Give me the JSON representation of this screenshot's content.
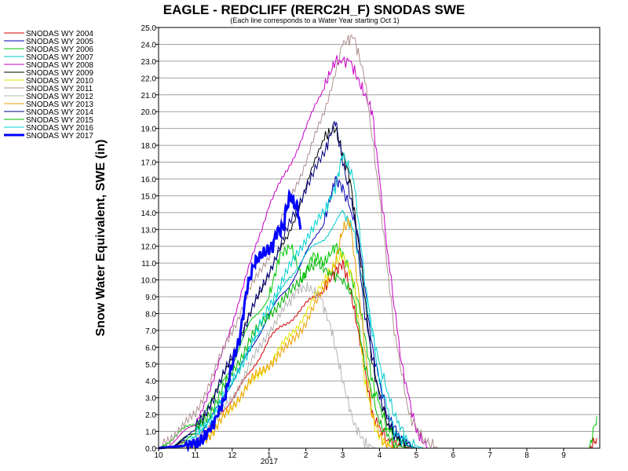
{
  "chart_data": {
    "type": "line",
    "title": "EAGLE - REDCLIFF (RERC2H_F) SNODAS SWE",
    "subtitle": "(Each line corresponds to a Water Year starting Oct 1)",
    "ylabel": "Snow Water Equivalent, SWE (in)",
    "xlabel": "",
    "ylim": [
      0,
      25
    ],
    "xlim": [
      10,
      10.98
    ],
    "xtick_labels": [
      "10",
      "11",
      "12",
      "1",
      "2",
      "3",
      "4",
      "5",
      "6",
      "7",
      "8",
      "9"
    ],
    "x_year_label": "2017",
    "ytick_labels": [
      "0.0",
      "1.0",
      "2.0",
      "3.0",
      "4.0",
      "5.0",
      "6.0",
      "7.0",
      "8.0",
      "9.0",
      "10.0",
      "11.0",
      "12.0",
      "13.0",
      "14.0",
      "15.0",
      "16.0",
      "17.0",
      "18.0",
      "19.0",
      "20.0",
      "21.0",
      "22.0",
      "23.0",
      "24.0",
      "25.0"
    ],
    "grid": true,
    "legend_position": "left",
    "series": [
      {
        "name": "SNODAS WY 2004",
        "color": "#d40000",
        "x": [
          0,
          1,
          1.5,
          2,
          2.5,
          3,
          3.5,
          4,
          4.5,
          4.8,
          5,
          5.2,
          5.5,
          5.8,
          6.2,
          6.6,
          7,
          11.7,
          11.9
        ],
        "y": [
          0,
          0.3,
          1.5,
          3,
          4.5,
          6.5,
          7.5,
          8.5,
          9.5,
          10.5,
          11,
          9.5,
          6,
          2,
          0.5,
          0.1,
          0,
          0,
          0.6
        ]
      },
      {
        "name": "SNODAS WY 2005",
        "color": "#0000b4",
        "x": [
          0,
          1,
          1.5,
          2,
          2.5,
          3,
          3.5,
          4,
          4.5,
          4.8,
          5,
          5.4,
          5.8,
          6.2,
          6.6,
          7
        ],
        "y": [
          0,
          0.5,
          2,
          4,
          5.8,
          8,
          9.5,
          11.5,
          13.5,
          16,
          15.5,
          13,
          6,
          2,
          0.5,
          0
        ]
      },
      {
        "name": "SNODAS WY 2006",
        "color": "#00c800",
        "x": [
          0,
          0.5,
          1,
          1.5,
          2,
          2.5,
          3,
          3.3,
          3.6,
          3.9,
          4.2,
          4.5,
          4.8,
          5,
          5.2,
          5.5,
          5.8,
          6.2,
          6.6,
          7,
          11.7,
          11.9
        ],
        "y": [
          0,
          0.8,
          1.5,
          3,
          5,
          7.5,
          9,
          11.5,
          12,
          10,
          11.5,
          11,
          12,
          11.5,
          10.5,
          8,
          4,
          1.2,
          0.3,
          0,
          0,
          1.9
        ]
      },
      {
        "name": "SNODAS WY 2007",
        "color": "#00c8c8",
        "x": [
          0,
          1,
          1.5,
          2,
          2.5,
          3,
          3.5,
          4,
          4.5,
          5,
          5.3,
          5.6,
          6,
          6.4,
          6.8,
          7.2
        ],
        "y": [
          0,
          0.8,
          2,
          4,
          6,
          8,
          10,
          11.5,
          12.5,
          14,
          13,
          9,
          5,
          2,
          0.3,
          0
        ]
      },
      {
        "name": "SNODAS WY 2008",
        "color": "#c800c8",
        "x": [
          0,
          1,
          1.5,
          2,
          2.5,
          3,
          3.5,
          4,
          4.5,
          4.8,
          5.2,
          5.5,
          5.8,
          6.2,
          6.6,
          7,
          7.3
        ],
        "y": [
          0,
          1.5,
          4,
          7.5,
          11,
          14.5,
          16.5,
          19,
          21.5,
          23,
          23,
          21.5,
          20,
          12,
          5,
          1,
          0
        ]
      },
      {
        "name": "SNODAS WY 2009",
        "color": "#000000",
        "x": [
          0,
          1,
          1.5,
          2,
          2.5,
          3,
          3.5,
          4,
          4.5,
          4.8,
          5,
          5.2,
          5.5,
          5.8,
          6.2,
          6.6,
          7
        ],
        "y": [
          0,
          1,
          3,
          5.5,
          8,
          10.5,
          12.5,
          15.5,
          18.5,
          19,
          17.5,
          16,
          11,
          5,
          1.5,
          0.3,
          0
        ]
      },
      {
        "name": "SNODAS WY 2010",
        "color": "#e6e600",
        "x": [
          0,
          1,
          1.5,
          2,
          2.5,
          3,
          3.5,
          4,
          4.5,
          4.8,
          5,
          5.3,
          5.6,
          5.9,
          6.2,
          6.5
        ],
        "y": [
          0,
          0.3,
          1,
          2.5,
          3.8,
          5,
          6.5,
          8,
          10,
          11,
          11.5,
          10,
          4,
          1,
          0.2,
          0
        ]
      },
      {
        "name": "SNODAS WY 2011",
        "color": "#b09090",
        "x": [
          0,
          0.5,
          1,
          1.5,
          2,
          2.5,
          3,
          3.5,
          4,
          4.5,
          5,
          5.3,
          5.6,
          6,
          6.4,
          6.8,
          7.2,
          7.6
        ],
        "y": [
          0,
          1,
          2,
          4.5,
          7,
          9.5,
          11.5,
          14.5,
          17,
          20,
          24,
          24.5,
          22,
          15,
          7,
          2,
          0.5,
          0
        ]
      },
      {
        "name": "SNODAS WY 2012",
        "color": "#b4b4b4",
        "x": [
          0,
          1,
          1.5,
          2,
          2.5,
          3,
          3.5,
          3.8,
          4.1,
          4.4,
          4.7,
          5,
          5.3,
          5.6,
          5.9
        ],
        "y": [
          0,
          0.5,
          1.5,
          3,
          5,
          7,
          8.5,
          9.5,
          9.5,
          9,
          7,
          4,
          1.5,
          0.3,
          0
        ]
      },
      {
        "name": "SNODAS WY 2013",
        "color": "#f0a000",
        "x": [
          0,
          1,
          1.5,
          2,
          2.5,
          3,
          3.5,
          4,
          4.5,
          4.8,
          5,
          5.2,
          5.5,
          5.8,
          6.1,
          6.4
        ],
        "y": [
          0,
          0.2,
          1,
          2.5,
          4,
          5,
          6,
          7.5,
          9.5,
          11,
          13,
          13.5,
          8,
          2,
          0.3,
          0
        ]
      },
      {
        "name": "SNODAS WY 2014",
        "color": "#000080",
        "x": [
          0,
          1,
          1.5,
          2,
          2.5,
          3,
          3.5,
          4,
          4.5,
          4.8,
          5,
          5.3,
          5.6,
          6,
          6.4,
          6.8,
          7.1
        ],
        "y": [
          0,
          1.2,
          3,
          5.5,
          8,
          10.5,
          13,
          15.5,
          17.5,
          19.5,
          17,
          14,
          8,
          3,
          0.8,
          0.1,
          0
        ]
      },
      {
        "name": "SNODAS WY 2015",
        "color": "#00b400",
        "x": [
          0,
          1,
          1.5,
          2,
          2.5,
          3,
          3.5,
          4,
          4.3,
          4.6,
          5,
          5.3,
          5.6,
          6,
          6.4,
          6.8
        ],
        "y": [
          0,
          1,
          2.5,
          4.5,
          6.5,
          8,
          9,
          10.5,
          11,
          10.5,
          10,
          9,
          5,
          1.5,
          0.2,
          0
        ]
      },
      {
        "name": "SNODAS WY 2016",
        "color": "#00d2d2",
        "x": [
          0,
          1,
          1.5,
          2,
          2.5,
          3,
          3.5,
          4,
          4.5,
          4.8,
          5,
          5.3,
          5.6,
          6,
          6.4,
          6.8,
          7.1
        ],
        "y": [
          0,
          0.8,
          2,
          4,
          6,
          8.5,
          10.5,
          12.5,
          14,
          15.5,
          17.5,
          16,
          10,
          4,
          1,
          0.1,
          0
        ]
      },
      {
        "name": "SNODAS WY 2017",
        "color": "#0000ff",
        "bold": true,
        "x": [
          0,
          0.5,
          1,
          1.2,
          1.5,
          1.8,
          2,
          2.2,
          2.4,
          2.6,
          2.8,
          3,
          3.1,
          3.2,
          3.3,
          3.4,
          3.45,
          3.5,
          3.55,
          3.6,
          3.65,
          3.7,
          3.75,
          3.8,
          3.85
        ],
        "y": [
          0,
          0.1,
          0.2,
          0.5,
          1.5,
          3,
          5,
          6.5,
          9.5,
          11,
          11.5,
          11.8,
          12,
          12.8,
          13,
          13.2,
          14,
          14.5,
          14.8,
          15,
          14.6,
          14.5,
          14.3,
          14,
          13
        ]
      }
    ]
  }
}
